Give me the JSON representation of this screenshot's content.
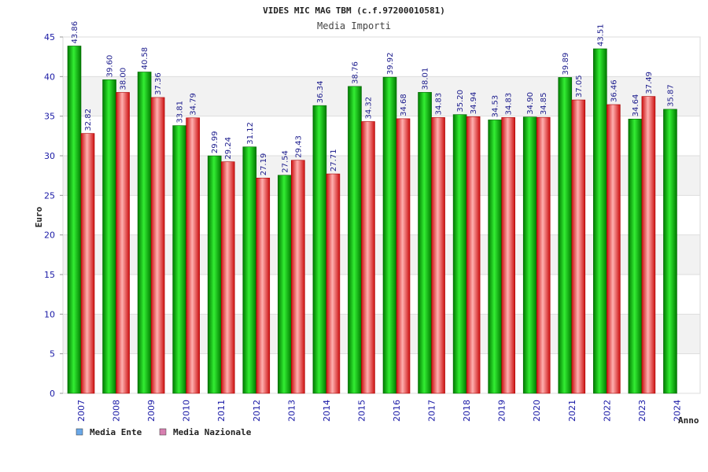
{
  "chart_data": {
    "type": "bar",
    "title": "VIDES MIC MAG TBM (c.f.97200010581)",
    "subtitle": "Media Importi",
    "ylabel": "Euro",
    "xlabel": "Anno",
    "ylim": [
      0,
      45
    ],
    "yticks": [
      "0",
      "5",
      "10",
      "15",
      "20",
      "25",
      "30",
      "35",
      "40",
      "45"
    ],
    "categories": [
      "2007",
      "2008",
      "2009",
      "2010",
      "2011",
      "2012",
      "2013",
      "2014",
      "2015",
      "2016",
      "2017",
      "2018",
      "2019",
      "2020",
      "2021",
      "2022",
      "2023",
      "2024"
    ],
    "series": [
      {
        "name": "Media Ente",
        "color": "#00aa00",
        "legend_color": "#6aa8e8",
        "values": [
          43.86,
          39.6,
          40.58,
          33.81,
          29.99,
          31.12,
          27.54,
          36.34,
          38.76,
          39.92,
          38.01,
          35.2,
          34.53,
          34.9,
          39.89,
          43.51,
          34.64,
          35.87
        ],
        "labels": [
          "43.86",
          "39.60",
          "40.58",
          "33.81",
          "29.99",
          "31.12",
          "27.54",
          "36.34",
          "38.76",
          "39.92",
          "38.01",
          "35.20",
          "34.53",
          "34.90",
          "39.89",
          "43.51",
          "34.64",
          "35.87"
        ]
      },
      {
        "name": "Media Nazionale",
        "color": "#e02020",
        "legend_color": "#d77fb0",
        "values": [
          32.82,
          38.0,
          37.36,
          34.79,
          29.24,
          27.19,
          29.43,
          27.71,
          34.32,
          34.68,
          34.83,
          34.94,
          34.83,
          34.85,
          37.05,
          36.46,
          37.49,
          null
        ],
        "labels": [
          "32.82",
          "38.00",
          "37.36",
          "34.79",
          "29.24",
          "27.19",
          "29.43",
          "27.71",
          "34.32",
          "34.68",
          "34.83",
          "34.94",
          "34.83",
          "34.85",
          "37.05",
          "36.46",
          "37.49",
          null
        ]
      }
    ],
    "grid": true,
    "legend": "bottom-left"
  }
}
